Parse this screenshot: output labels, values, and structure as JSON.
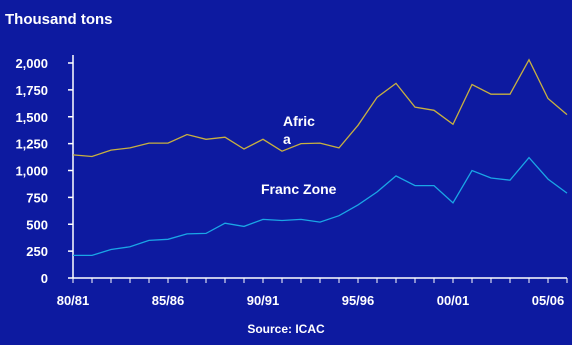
{
  "colors": {
    "background": "#0d1aa0",
    "axis": "#ffffff",
    "africa_line": "#c8b040",
    "franc_zone_line": "#1aa6e6",
    "text": "#ffffff"
  },
  "chart_data": {
    "type": "line",
    "title": "",
    "ylabel": "Thousand tons",
    "xlabel": "",
    "source": "Source: ICAC",
    "ylim": [
      0,
      2000
    ],
    "ytick_labels": [
      "0",
      "250",
      "500",
      "750",
      "1,000",
      "1,250",
      "1,500",
      "1,750",
      "2,000"
    ],
    "ytick_values": [
      0,
      250,
      500,
      750,
      1000,
      1250,
      1500,
      1750,
      2000
    ],
    "xtick_labels": [
      "80/81",
      "85/86",
      "90/91",
      "95/96",
      "00/01",
      "05/06"
    ],
    "xtick_index": [
      0,
      5,
      10,
      15,
      20,
      25
    ],
    "x": [
      "80/81",
      "81/82",
      "82/83",
      "83/84",
      "84/85",
      "85/86",
      "86/87",
      "87/88",
      "88/89",
      "89/90",
      "90/91",
      "91/92",
      "92/93",
      "93/94",
      "94/95",
      "95/96",
      "96/97",
      "97/98",
      "98/99",
      "99/00",
      "00/01",
      "01/02",
      "02/03",
      "03/04",
      "04/05",
      "05/06",
      "06/07"
    ],
    "grid": false,
    "series": [
      {
        "name": "Africa",
        "label_lines": [
          "Afric",
          "a"
        ],
        "values": [
          1145,
          1130,
          1190,
          1210,
          1255,
          1255,
          1335,
          1290,
          1310,
          1200,
          1290,
          1180,
          1250,
          1255,
          1210,
          1420,
          1680,
          1810,
          1590,
          1560,
          1430,
          1800,
          1710,
          1710,
          2030,
          1670,
          1520
        ]
      },
      {
        "name": "Franc Zone",
        "label_lines": [
          "Franc Zone"
        ],
        "values": [
          210,
          210,
          265,
          290,
          350,
          360,
          410,
          415,
          510,
          480,
          545,
          535,
          545,
          520,
          580,
          680,
          800,
          950,
          860,
          860,
          700,
          1000,
          930,
          910,
          1120,
          920,
          790
        ]
      }
    ]
  }
}
